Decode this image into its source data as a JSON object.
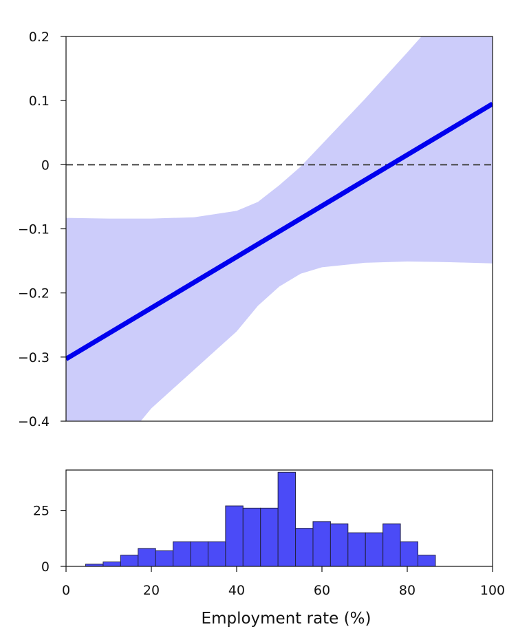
{
  "chart_data": [
    {
      "type": "line",
      "title": "",
      "xlabel": "",
      "ylabel": "",
      "xlim": [
        0,
        100
      ],
      "ylim": [
        -0.4,
        0.2
      ],
      "y_ticks": [
        {
          "value": -0.4,
          "label": "−0.4"
        },
        {
          "value": -0.3,
          "label": "−0.3"
        },
        {
          "value": -0.2,
          "label": "−0.2"
        },
        {
          "value": -0.1,
          "label": "−0.1"
        },
        {
          "value": 0,
          "label": "0"
        },
        {
          "value": 0.1,
          "label": "0.1"
        },
        {
          "value": 0.2,
          "label": "0.2"
        }
      ],
      "reference_line": {
        "y": 0,
        "style": "dashed"
      },
      "series": [
        {
          "x": [
            0,
            100
          ],
          "y": [
            -0.303,
            0.095
          ],
          "color": "#0000ee"
        }
      ],
      "confidence_band": {
        "color": "#ccccfa",
        "x": [
          0,
          10,
          20,
          30,
          40,
          45,
          50,
          55,
          60,
          70,
          80,
          90,
          100
        ],
        "lower": [
          -0.52,
          -0.46,
          -0.38,
          -0.32,
          -0.26,
          -0.22,
          -0.19,
          -0.17,
          -0.16,
          -0.153,
          -0.151,
          -0.152,
          -0.154
        ],
        "upper": [
          -0.083,
          -0.084,
          -0.084,
          -0.082,
          -0.072,
          -0.058,
          -0.032,
          -0.003,
          0.032,
          0.102,
          0.175,
          0.25,
          0.32
        ]
      },
      "grid": false
    },
    {
      "type": "bar",
      "title": "",
      "xlabel": "Employment rate (%)",
      "ylabel": "",
      "xlim": [
        0,
        100
      ],
      "ylim": [
        0,
        43
      ],
      "x_ticks": [
        0,
        20,
        40,
        60,
        80,
        100
      ],
      "y_ticks": [
        0,
        25
      ],
      "bin_width": 4.1,
      "bin_starts": [
        4.6,
        8.7,
        12.8,
        16.9,
        21.0,
        25.1,
        29.2,
        33.3,
        37.4,
        41.5,
        45.6,
        49.7,
        53.8,
        57.9,
        62.0,
        66.1,
        70.2,
        74.3,
        78.4,
        82.5
      ],
      "values": [
        1,
        2,
        5,
        8,
        7,
        11,
        11,
        11,
        27,
        26,
        26,
        42,
        17,
        20,
        19,
        15,
        15,
        19,
        11,
        5
      ],
      "color": "#4b4bf7",
      "grid": false
    }
  ]
}
